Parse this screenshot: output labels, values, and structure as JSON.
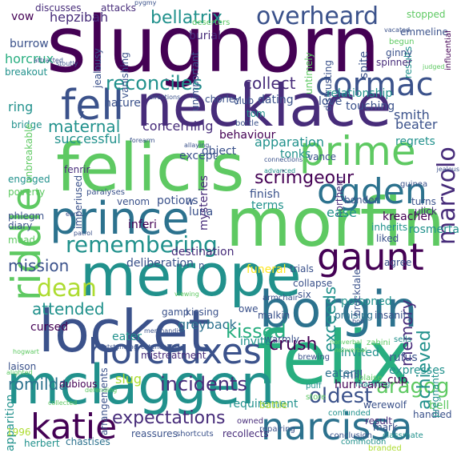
{
  "palette": {
    "dark_purple": "#440154",
    "purple": "#472c7a",
    "indigo": "#3b528b",
    "blue": "#2c728e",
    "teal": "#21918c",
    "green_teal": "#28ae80",
    "green": "#5ec962",
    "lime": "#addc30",
    "yellow": "#fde725"
  },
  "words": [
    {
      "text": "slughorn",
      "color": "dark_purple"
    },
    {
      "text": "necklace",
      "color": "purple"
    },
    {
      "text": "felicis",
      "color": "green"
    },
    {
      "text": "morfin",
      "color": "green"
    },
    {
      "text": "felix",
      "color": "green_teal"
    },
    {
      "text": "merope",
      "color": "teal"
    },
    {
      "text": "locket",
      "color": "indigo"
    },
    {
      "text": "mclaggen",
      "color": "teal"
    },
    {
      "text": "borgin",
      "color": "blue"
    },
    {
      "text": "prince",
      "color": "blue"
    },
    {
      "text": "horcruxes",
      "color": "indigo"
    },
    {
      "text": "riddle",
      "color": "green"
    },
    {
      "text": "fell",
      "color": "indigo"
    },
    {
      "text": "prime",
      "color": "green"
    },
    {
      "text": "ogden",
      "color": "blue"
    },
    {
      "text": "narcissa",
      "color": "blue"
    },
    {
      "text": "gaunt",
      "color": "dark_purple"
    },
    {
      "text": "katie",
      "color": "dark_purple"
    },
    {
      "text": "cormac",
      "color": "indigo"
    },
    {
      "text": "overheard",
      "color": "indigo"
    },
    {
      "text": "remembering",
      "color": "teal"
    },
    {
      "text": "marvolo",
      "color": "purple"
    },
    {
      "text": "dean",
      "color": "lime"
    },
    {
      "text": "aragog",
      "color": "green"
    },
    {
      "text": "expectations",
      "color": "purple"
    },
    {
      "text": "incidents",
      "color": "purple"
    },
    {
      "text": "scrimgeour",
      "color": "dark_purple"
    },
    {
      "text": "reconciles",
      "color": "teal"
    },
    {
      "text": "collect",
      "color": "purple"
    },
    {
      "text": "oldest",
      "color": "indigo"
    },
    {
      "text": "bellatrix",
      "color": "teal"
    },
    {
      "text": "memory",
      "color": "purple"
    },
    {
      "text": "exceeds",
      "color": "teal"
    },
    {
      "text": "achieved",
      "color": "teal"
    },
    {
      "text": "kissed",
      "color": "green_teal"
    },
    {
      "text": "crush",
      "color": "dark_purple"
    },
    {
      "text": "romilda",
      "color": "blue"
    },
    {
      "text": "maternal",
      "color": "teal"
    },
    {
      "text": "mission",
      "color": "indigo"
    },
    {
      "text": "attended",
      "color": "teal"
    },
    {
      "text": "poisoned",
      "color": "teal"
    },
    {
      "text": "apparition",
      "color": "teal"
    },
    {
      "text": "smith",
      "color": "indigo"
    },
    {
      "text": "hepzibah",
      "color": "purple"
    },
    {
      "text": "vow",
      "color": "dark_purple"
    },
    {
      "text": "cursed",
      "color": "dark_purple"
    },
    {
      "text": "greyback",
      "color": "blue"
    },
    {
      "text": "slug",
      "color": "lime"
    },
    {
      "text": "eater",
      "color": "teal"
    },
    {
      "text": "luna",
      "color": "indigo"
    },
    {
      "text": "inferi",
      "color": "dark_purple"
    },
    {
      "text": "kreacher",
      "color": "dark_purple"
    },
    {
      "text": "rosmerta",
      "color": "teal"
    },
    {
      "text": "rufus",
      "color": "indigo"
    },
    {
      "text": "expresses",
      "color": "teal"
    },
    {
      "text": "mill",
      "color": "indigo"
    },
    {
      "text": "cup",
      "color": "dark_purple"
    },
    {
      "text": "eaters",
      "color": "blue"
    },
    {
      "text": "invited",
      "color": "teal"
    },
    {
      "text": "hurricane",
      "color": "dark_purple"
    },
    {
      "text": "werewolf",
      "color": "indigo"
    },
    {
      "text": "bell",
      "color": "green"
    },
    {
      "text": "result",
      "color": "purple"
    },
    {
      "text": "handled",
      "color": "indigo"
    },
    {
      "text": "requirement",
      "color": "teal"
    },
    {
      "text": "reassures",
      "color": "indigo"
    },
    {
      "text": "recollects",
      "color": "purple"
    },
    {
      "text": "chastises",
      "color": "blue"
    },
    {
      "text": "herbert",
      "color": "teal"
    },
    {
      "text": "1996",
      "color": "lime"
    },
    {
      "text": "dubious",
      "color": "dark_purple"
    },
    {
      "text": "arrangements",
      "color": "indigo"
    },
    {
      "text": "laison",
      "color": "indigo"
    },
    {
      "text": "warmly",
      "color": "indigo"
    },
    {
      "text": "mistreatment",
      "color": "purple"
    },
    {
      "text": "battle",
      "color": "lime"
    },
    {
      "text": "puff",
      "color": "teal"
    },
    {
      "text": "store",
      "color": "green"
    },
    {
      "text": "pregnant",
      "color": "teal"
    },
    {
      "text": "mark",
      "color": "indigo"
    },
    {
      "text": "classmate",
      "color": "teal"
    },
    {
      "text": "conclusion",
      "color": "indigo"
    },
    {
      "text": "commotion",
      "color": "teal"
    },
    {
      "text": "branded",
      "color": "lime"
    },
    {
      "text": "owned",
      "color": "purple"
    },
    {
      "text": "repairing",
      "color": "indigo"
    },
    {
      "text": "shortcuts",
      "color": "indigo"
    },
    {
      "text": "confunded",
      "color": "teal"
    },
    {
      "text": "blaise",
      "color": "green"
    },
    {
      "text": "reaching",
      "color": "teal"
    },
    {
      "text": "zabini",
      "color": "green"
    },
    {
      "text": "sells",
      "color": "teal"
    },
    {
      "text": "insanity",
      "color": "indigo"
    },
    {
      "text": "praising",
      "color": "blue"
    },
    {
      "text": "six",
      "color": "indigo"
    },
    {
      "text": "collapse",
      "color": "indigo"
    },
    {
      "text": "trials",
      "color": "indigo"
    },
    {
      "text": "funeral",
      "color": "yellow"
    },
    {
      "text": "agree",
      "color": "indigo"
    },
    {
      "text": "liked",
      "color": "indigo"
    },
    {
      "text": "brockdale",
      "color": "indigo"
    },
    {
      "text": "inherits",
      "color": "teal"
    },
    {
      "text": "turns",
      "color": "indigo"
    },
    {
      "text": "ulick",
      "color": "purple"
    },
    {
      "text": "guinea",
      "color": "indigo"
    },
    {
      "text": "bonder",
      "color": "indigo"
    },
    {
      "text": "northern",
      "color": "purple"
    },
    {
      "text": "ease",
      "color": "teal"
    },
    {
      "text": "tonks",
      "color": "teal"
    },
    {
      "text": "vance",
      "color": "indigo"
    },
    {
      "text": "invite",
      "color": "teal"
    },
    {
      "text": "finish",
      "color": "indigo"
    },
    {
      "text": "terms",
      "color": "teal"
    },
    {
      "text": "object",
      "color": "indigo"
    },
    {
      "text": "apparation",
      "color": "teal"
    },
    {
      "text": "behaviour",
      "color": "dark_purple"
    },
    {
      "text": "except",
      "color": "indigo"
    },
    {
      "text": "concerning",
      "color": "purple"
    },
    {
      "text": "successful",
      "color": "teal"
    },
    {
      "text": "fenrir",
      "color": "purple"
    },
    {
      "text": "venom",
      "color": "indigo"
    },
    {
      "text": "potions",
      "color": "indigo"
    },
    {
      "text": "mysteries",
      "color": "purple"
    },
    {
      "text": "destination",
      "color": "purple"
    },
    {
      "text": "deliberation",
      "color": "indigo"
    },
    {
      "text": "imperiused",
      "color": "indigo"
    },
    {
      "text": "engaged",
      "color": "teal"
    },
    {
      "text": "poverty",
      "color": "green"
    },
    {
      "text": "phlegm",
      "color": "indigo"
    },
    {
      "text": "diary",
      "color": "indigo"
    },
    {
      "text": "mead",
      "color": "green"
    },
    {
      "text": "ring",
      "color": "teal"
    },
    {
      "text": "bridge",
      "color": "teal"
    },
    {
      "text": "breakout",
      "color": "teal"
    },
    {
      "text": "horcrux",
      "color": "green_teal"
    },
    {
      "text": "burrow",
      "color": "indigo"
    },
    {
      "text": "discusses",
      "color": "purple"
    },
    {
      "text": "attacks",
      "color": "purple"
    },
    {
      "text": "pygmy",
      "color": "indigo"
    },
    {
      "text": "burial",
      "color": "purple"
    },
    {
      "text": "deserters",
      "color": "green"
    },
    {
      "text": "jealousy",
      "color": "indigo"
    },
    {
      "text": "unimportant",
      "color": "indigo"
    },
    {
      "text": "vanishing",
      "color": "indigo"
    },
    {
      "text": "stopped",
      "color": "green"
    },
    {
      "text": "emmeline",
      "color": "indigo"
    },
    {
      "text": "influential",
      "color": "dark_purple"
    },
    {
      "text": "results",
      "color": "teal"
    },
    {
      "text": "begun",
      "color": "green"
    },
    {
      "text": "ginny",
      "color": "indigo"
    },
    {
      "text": "spinner",
      "color": "purple"
    },
    {
      "text": "spite",
      "color": "indigo"
    },
    {
      "text": "vacated",
      "color": "indigo"
    },
    {
      "text": "judged",
      "color": "green"
    },
    {
      "text": "distrusting",
      "color": "indigo"
    },
    {
      "text": "untimely",
      "color": "green"
    },
    {
      "text": "nature",
      "color": "indigo"
    },
    {
      "text": "relationship",
      "color": "teal"
    },
    {
      "text": "love",
      "color": "indigo"
    },
    {
      "text": "dating",
      "color": "indigo"
    },
    {
      "text": "club",
      "color": "indigo"
    },
    {
      "text": "chorley",
      "color": "indigo"
    },
    {
      "text": "touching",
      "color": "indigo"
    },
    {
      "text": "beater",
      "color": "indigo"
    },
    {
      "text": "regrets",
      "color": "teal"
    },
    {
      "text": "tom",
      "color": "teal"
    },
    {
      "text": "bottle",
      "color": "indigo"
    },
    {
      "text": "unbreakable",
      "color": "green"
    },
    {
      "text": "directions",
      "color": "indigo"
    },
    {
      "text": "forearm",
      "color": "indigo"
    },
    {
      "text": "allaying",
      "color": "indigo"
    },
    {
      "text": "connections",
      "color": "indigo"
    },
    {
      "text": "advanced",
      "color": "teal"
    },
    {
      "text": "paralyses",
      "color": "indigo"
    },
    {
      "text": "patrol",
      "color": "indigo"
    },
    {
      "text": "ears",
      "color": "indigo"
    },
    {
      "text": "gamp",
      "color": "indigo"
    },
    {
      "text": "kissing",
      "color": "indigo"
    },
    {
      "text": "owe",
      "color": "indigo"
    },
    {
      "text": "armchair",
      "color": "indigo"
    },
    {
      "text": "malkin",
      "color": "indigo"
    },
    {
      "text": "merchandise",
      "color": "indigo"
    },
    {
      "text": "viewing",
      "color": "green"
    },
    {
      "text": "outstanding",
      "color": "indigo"
    },
    {
      "text": "extendable",
      "color": "indigo"
    },
    {
      "text": "hogwart",
      "color": "green"
    },
    {
      "text": "alighted",
      "color": "green"
    },
    {
      "text": "defending",
      "color": "green"
    },
    {
      "text": "collected",
      "color": "green"
    },
    {
      "text": "nonverbal",
      "color": "green"
    },
    {
      "text": "brewing",
      "color": "indigo"
    },
    {
      "text": "bob",
      "color": "indigo"
    },
    {
      "text": "jealous",
      "color": "indigo"
    },
    {
      "text": "stoutly",
      "color": "indigo"
    },
    {
      "text": "attracted",
      "color": "indigo"
    },
    {
      "text": "n",
      "color": "indigo"
    },
    {
      "text": "7",
      "color": "indigo"
    },
    {
      "text": "w",
      "color": "indigo"
    },
    {
      "text": "nonverbal",
      "color": "green"
    }
  ]
}
